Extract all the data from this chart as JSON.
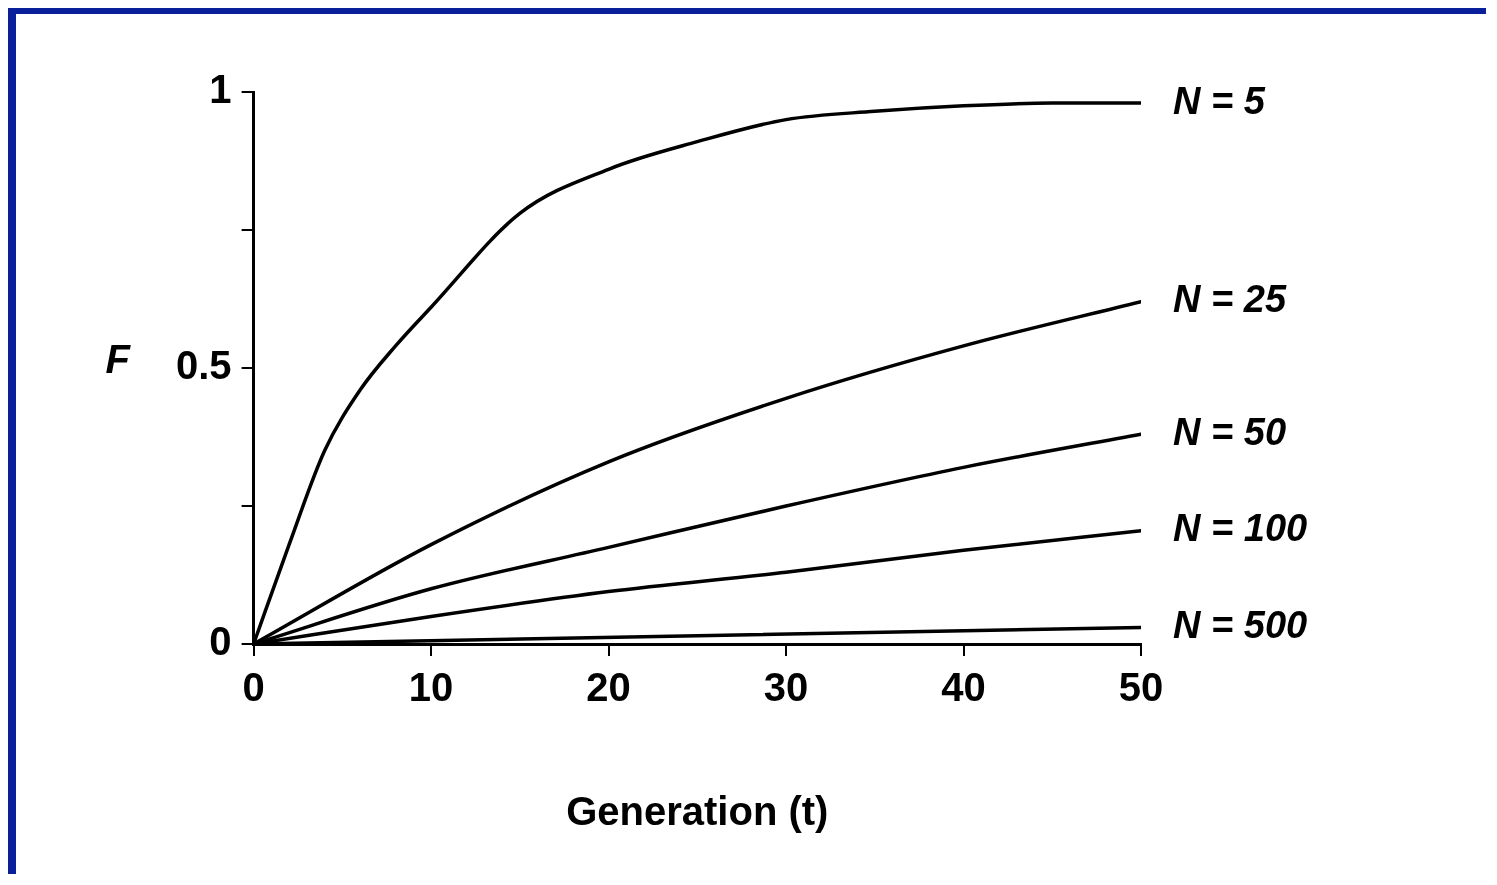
{
  "chart_data": {
    "type": "line",
    "xlabel": "Generation (t)",
    "ylabel": "F",
    "xlim": [
      0,
      50
    ],
    "xticks": [
      0,
      10,
      20,
      30,
      40,
      50
    ],
    "ylim": [
      0,
      1
    ],
    "yticks": [
      0,
      {
        "value": 0.25,
        "label": null
      },
      0.5,
      {
        "value": 0.75,
        "label": null
      },
      1
    ],
    "grid": false,
    "legend": false,
    "marker": "none",
    "line_style": "solid",
    "series": [
      {
        "name": "N = 5",
        "color": "#000000",
        "x": [
          0,
          2,
          4,
          6,
          8,
          10,
          15,
          20,
          25,
          30,
          35,
          40,
          45,
          50
        ],
        "values": [
          0,
          0.18,
          0.35,
          0.46,
          0.54,
          0.61,
          0.78,
          0.86,
          0.91,
          0.95,
          0.965,
          0.975,
          0.98,
          0.98
        ]
      },
      {
        "name": "N = 25",
        "color": "#000000",
        "x": [
          0,
          10,
          20,
          30,
          40,
          50
        ],
        "values": [
          0,
          0.18,
          0.33,
          0.445,
          0.54,
          0.62
        ]
      },
      {
        "name": "N = 50",
        "color": "#000000",
        "x": [
          0,
          10,
          20,
          30,
          40,
          50
        ],
        "values": [
          0,
          0.1,
          0.175,
          0.25,
          0.32,
          0.38
        ]
      },
      {
        "name": "N = 100",
        "color": "#000000",
        "x": [
          0,
          10,
          20,
          30,
          40,
          50
        ],
        "values": [
          0,
          0.05,
          0.095,
          0.13,
          0.17,
          0.205
        ]
      },
      {
        "name": "N = 500",
        "color": "#000000",
        "x": [
          0,
          25,
          50
        ],
        "values": [
          0,
          0.015,
          0.03
        ]
      }
    ]
  }
}
